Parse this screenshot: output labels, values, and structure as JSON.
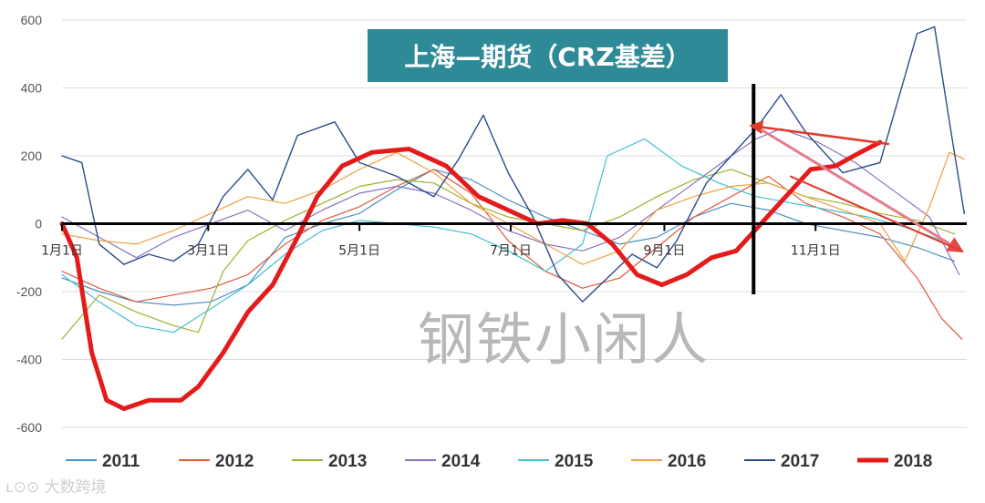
{
  "chart_data": {
    "type": "line",
    "title": "上海—期货（CRZ基差）",
    "ylim": [
      -600,
      600
    ],
    "yticks": [
      600,
      400,
      200,
      0,
      -200,
      -400,
      -600
    ],
    "xlim": [
      0,
      365
    ],
    "xticks": [
      {
        "day": 0,
        "label": "1月1日"
      },
      {
        "day": 59,
        "label": "3月1日"
      },
      {
        "day": 120,
        "label": "5月1日"
      },
      {
        "day": 181,
        "label": "7月1日"
      },
      {
        "day": 243,
        "label": "9月1日"
      },
      {
        "day": 304,
        "label": "11月1日"
      }
    ],
    "grid": true,
    "legend_position": "bottom",
    "marker_day": 279,
    "series": [
      {
        "name": "2011",
        "color": "#4a90c8",
        "width": 1.2,
        "points": [
          [
            0,
            -160
          ],
          [
            15,
            -200
          ],
          [
            30,
            -230
          ],
          [
            45,
            -240
          ],
          [
            60,
            -230
          ],
          [
            75,
            -180
          ],
          [
            90,
            -40
          ],
          [
            105,
            0
          ],
          [
            120,
            30
          ],
          [
            135,
            100
          ],
          [
            150,
            160
          ],
          [
            165,
            130
          ],
          [
            180,
            70
          ],
          [
            195,
            20
          ],
          [
            210,
            -20
          ],
          [
            225,
            -60
          ],
          [
            240,
            -40
          ],
          [
            255,
            20
          ],
          [
            270,
            60
          ],
          [
            285,
            40
          ],
          [
            300,
            0
          ],
          [
            315,
            -20
          ],
          [
            330,
            -40
          ],
          [
            345,
            -70
          ],
          [
            360,
            -110
          ]
        ]
      },
      {
        "name": "2012",
        "color": "#e05a3a",
        "width": 1.2,
        "points": [
          [
            0,
            -140
          ],
          [
            15,
            -190
          ],
          [
            30,
            -230
          ],
          [
            45,
            -210
          ],
          [
            60,
            -190
          ],
          [
            75,
            -150
          ],
          [
            90,
            -60
          ],
          [
            105,
            10
          ],
          [
            120,
            50
          ],
          [
            135,
            110
          ],
          [
            150,
            160
          ],
          [
            165,
            90
          ],
          [
            180,
            -50
          ],
          [
            195,
            -140
          ],
          [
            210,
            -190
          ],
          [
            225,
            -160
          ],
          [
            240,
            -70
          ],
          [
            255,
            20
          ],
          [
            270,
            80
          ],
          [
            285,
            140
          ],
          [
            300,
            60
          ],
          [
            315,
            20
          ],
          [
            330,
            -30
          ],
          [
            345,
            -160
          ],
          [
            355,
            -280
          ],
          [
            363,
            -340
          ]
        ]
      },
      {
        "name": "2013",
        "color": "#a0b030",
        "width": 1.2,
        "points": [
          [
            0,
            -340
          ],
          [
            15,
            -210
          ],
          [
            30,
            -260
          ],
          [
            45,
            -300
          ],
          [
            55,
            -320
          ],
          [
            65,
            -140
          ],
          [
            75,
            -50
          ],
          [
            90,
            10
          ],
          [
            105,
            60
          ],
          [
            120,
            110
          ],
          [
            135,
            130
          ],
          [
            150,
            120
          ],
          [
            165,
            60
          ],
          [
            180,
            20
          ],
          [
            195,
            0
          ],
          [
            210,
            -20
          ],
          [
            225,
            20
          ],
          [
            240,
            80
          ],
          [
            255,
            130
          ],
          [
            270,
            160
          ],
          [
            285,
            120
          ],
          [
            300,
            80
          ],
          [
            315,
            60
          ],
          [
            330,
            30
          ],
          [
            345,
            10
          ],
          [
            360,
            -30
          ]
        ]
      },
      {
        "name": "2014",
        "color": "#8a70c0",
        "width": 1.2,
        "points": [
          [
            0,
            20
          ],
          [
            15,
            -40
          ],
          [
            30,
            -100
          ],
          [
            45,
            -40
          ],
          [
            60,
            0
          ],
          [
            75,
            40
          ],
          [
            90,
            -20
          ],
          [
            105,
            40
          ],
          [
            120,
            90
          ],
          [
            135,
            110
          ],
          [
            150,
            90
          ],
          [
            165,
            40
          ],
          [
            180,
            -20
          ],
          [
            195,
            -60
          ],
          [
            210,
            -80
          ],
          [
            225,
            -40
          ],
          [
            240,
            40
          ],
          [
            255,
            120
          ],
          [
            270,
            200
          ],
          [
            280,
            250
          ],
          [
            290,
            280
          ],
          [
            305,
            240
          ],
          [
            320,
            180
          ],
          [
            335,
            100
          ],
          [
            350,
            20
          ],
          [
            362,
            -150
          ]
        ]
      },
      {
        "name": "2015",
        "color": "#40c0d0",
        "width": 1.2,
        "points": [
          [
            0,
            -150
          ],
          [
            15,
            -230
          ],
          [
            30,
            -300
          ],
          [
            45,
            -320
          ],
          [
            60,
            -250
          ],
          [
            75,
            -180
          ],
          [
            90,
            -90
          ],
          [
            105,
            -20
          ],
          [
            120,
            10
          ],
          [
            135,
            0
          ],
          [
            150,
            -10
          ],
          [
            165,
            -30
          ],
          [
            180,
            -80
          ],
          [
            195,
            -140
          ],
          [
            210,
            -60
          ],
          [
            220,
            200
          ],
          [
            235,
            250
          ],
          [
            250,
            170
          ],
          [
            265,
            120
          ],
          [
            280,
            80
          ],
          [
            295,
            60
          ],
          [
            310,
            40
          ],
          [
            325,
            20
          ],
          [
            340,
            -10
          ],
          [
            355,
            -50
          ]
        ]
      },
      {
        "name": "2016",
        "color": "#f0a040",
        "width": 1.2,
        "points": [
          [
            0,
            -30
          ],
          [
            15,
            -50
          ],
          [
            30,
            -60
          ],
          [
            45,
            -20
          ],
          [
            60,
            30
          ],
          [
            75,
            80
          ],
          [
            90,
            60
          ],
          [
            105,
            100
          ],
          [
            120,
            160
          ],
          [
            135,
            210
          ],
          [
            150,
            150
          ],
          [
            165,
            60
          ],
          [
            180,
            0
          ],
          [
            195,
            -60
          ],
          [
            210,
            -120
          ],
          [
            225,
            -80
          ],
          [
            240,
            40
          ],
          [
            255,
            80
          ],
          [
            270,
            110
          ],
          [
            285,
            120
          ],
          [
            300,
            80
          ],
          [
            315,
            40
          ],
          [
            330,
            0
          ],
          [
            340,
            -110
          ],
          [
            350,
            50
          ],
          [
            358,
            210
          ],
          [
            364,
            190
          ]
        ]
      },
      {
        "name": "2017",
        "color": "#2c4a8a",
        "width": 1.4,
        "points": [
          [
            0,
            200
          ],
          [
            8,
            180
          ],
          [
            15,
            -60
          ],
          [
            25,
            -120
          ],
          [
            35,
            -90
          ],
          [
            45,
            -110
          ],
          [
            55,
            -60
          ],
          [
            65,
            80
          ],
          [
            75,
            160
          ],
          [
            85,
            70
          ],
          [
            95,
            260
          ],
          [
            110,
            300
          ],
          [
            120,
            180
          ],
          [
            135,
            140
          ],
          [
            150,
            80
          ],
          [
            160,
            190
          ],
          [
            170,
            320
          ],
          [
            180,
            150
          ],
          [
            190,
            20
          ],
          [
            200,
            -150
          ],
          [
            210,
            -230
          ],
          [
            220,
            -160
          ],
          [
            230,
            -90
          ],
          [
            240,
            -130
          ],
          [
            248,
            -50
          ],
          [
            260,
            120
          ],
          [
            270,
            200
          ],
          [
            280,
            280
          ],
          [
            290,
            380
          ],
          [
            300,
            270
          ],
          [
            315,
            150
          ],
          [
            330,
            180
          ],
          [
            345,
            560
          ],
          [
            352,
            580
          ],
          [
            358,
            300
          ],
          [
            364,
            30
          ]
        ]
      },
      {
        "name": "2018",
        "color": "#e51b1b",
        "width": 5,
        "points": [
          [
            0,
            0
          ],
          [
            6,
            -100
          ],
          [
            12,
            -380
          ],
          [
            18,
            -520
          ],
          [
            25,
            -545
          ],
          [
            35,
            -520
          ],
          [
            48,
            -520
          ],
          [
            55,
            -480
          ],
          [
            65,
            -380
          ],
          [
            75,
            -260
          ],
          [
            85,
            -180
          ],
          [
            95,
            -40
          ],
          [
            103,
            80
          ],
          [
            113,
            170
          ],
          [
            125,
            210
          ],
          [
            140,
            220
          ],
          [
            155,
            170
          ],
          [
            168,
            80
          ],
          [
            180,
            40
          ],
          [
            192,
            0
          ],
          [
            202,
            10
          ],
          [
            212,
            0
          ],
          [
            222,
            -60
          ],
          [
            232,
            -150
          ],
          [
            242,
            -180
          ],
          [
            252,
            -150
          ],
          [
            262,
            -100
          ],
          [
            272,
            -80
          ],
          [
            282,
            0
          ],
          [
            292,
            80
          ],
          [
            302,
            160
          ],
          [
            312,
            170
          ],
          [
            322,
            210
          ],
          [
            330,
            240
          ]
        ]
      }
    ],
    "annotations": {
      "watermark": "钢铁小闲人",
      "brand": "大数跨境"
    }
  }
}
